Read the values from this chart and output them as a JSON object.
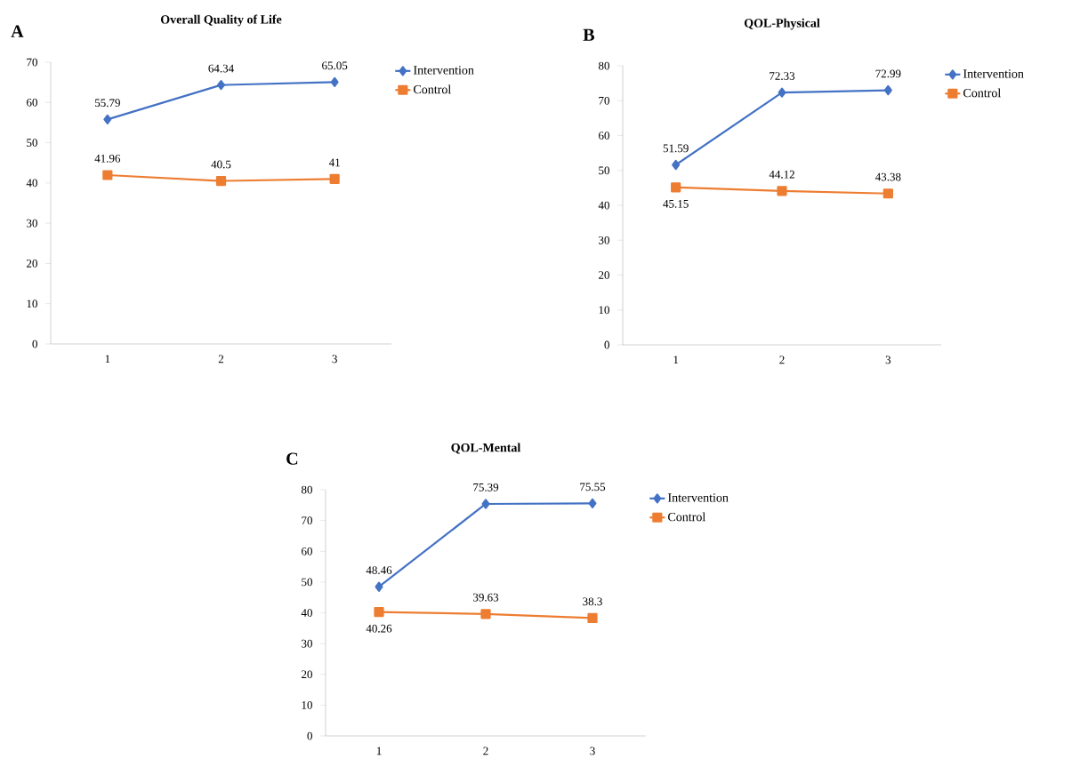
{
  "chart_data": [
    {
      "type": "line",
      "title": "Overall Quality of Life",
      "annotations": [
        "A"
      ],
      "categories": [
        "1",
        "2",
        "3"
      ],
      "ylim": [
        0,
        70
      ],
      "yticks": [
        0,
        10,
        20,
        30,
        40,
        50,
        60,
        70
      ],
      "data_labels": true,
      "legend": "right",
      "series": [
        {
          "name": "Intervention",
          "color": "#4472c4",
          "marker": "diamond",
          "values": [
            55.79,
            64.34,
            65.05
          ]
        },
        {
          "name": "Control",
          "color": "#ed7d31",
          "marker": "square",
          "values": [
            41.96,
            40.5,
            41
          ]
        }
      ]
    },
    {
      "type": "line",
      "title": "QOL-Physical",
      "annotations": [
        "B"
      ],
      "categories": [
        "1",
        "2",
        "3"
      ],
      "ylim": [
        0,
        80
      ],
      "yticks": [
        0,
        10,
        20,
        30,
        40,
        50,
        60,
        70,
        80
      ],
      "data_labels": true,
      "legend": "right",
      "series": [
        {
          "name": "Intervention",
          "color": "#4472c4",
          "marker": "diamond",
          "values": [
            51.59,
            72.33,
            72.99
          ]
        },
        {
          "name": "Control",
          "color": "#ed7d31",
          "marker": "square",
          "values": [
            45.15,
            44.12,
            43.38
          ]
        }
      ]
    },
    {
      "type": "line",
      "title": "QOL-Mental",
      "annotations": [
        "C"
      ],
      "categories": [
        "1",
        "2",
        "3"
      ],
      "ylim": [
        0,
        80
      ],
      "yticks": [
        0,
        10,
        20,
        30,
        40,
        50,
        60,
        70,
        80
      ],
      "data_labels": true,
      "legend": "right",
      "series": [
        {
          "name": "Intervention",
          "color": "#4472c4",
          "marker": "diamond",
          "values": [
            48.46,
            75.39,
            75.55
          ]
        },
        {
          "name": "Control",
          "color": "#ed7d31",
          "marker": "square",
          "values": [
            40.26,
            39.63,
            38.3
          ]
        }
      ]
    }
  ]
}
